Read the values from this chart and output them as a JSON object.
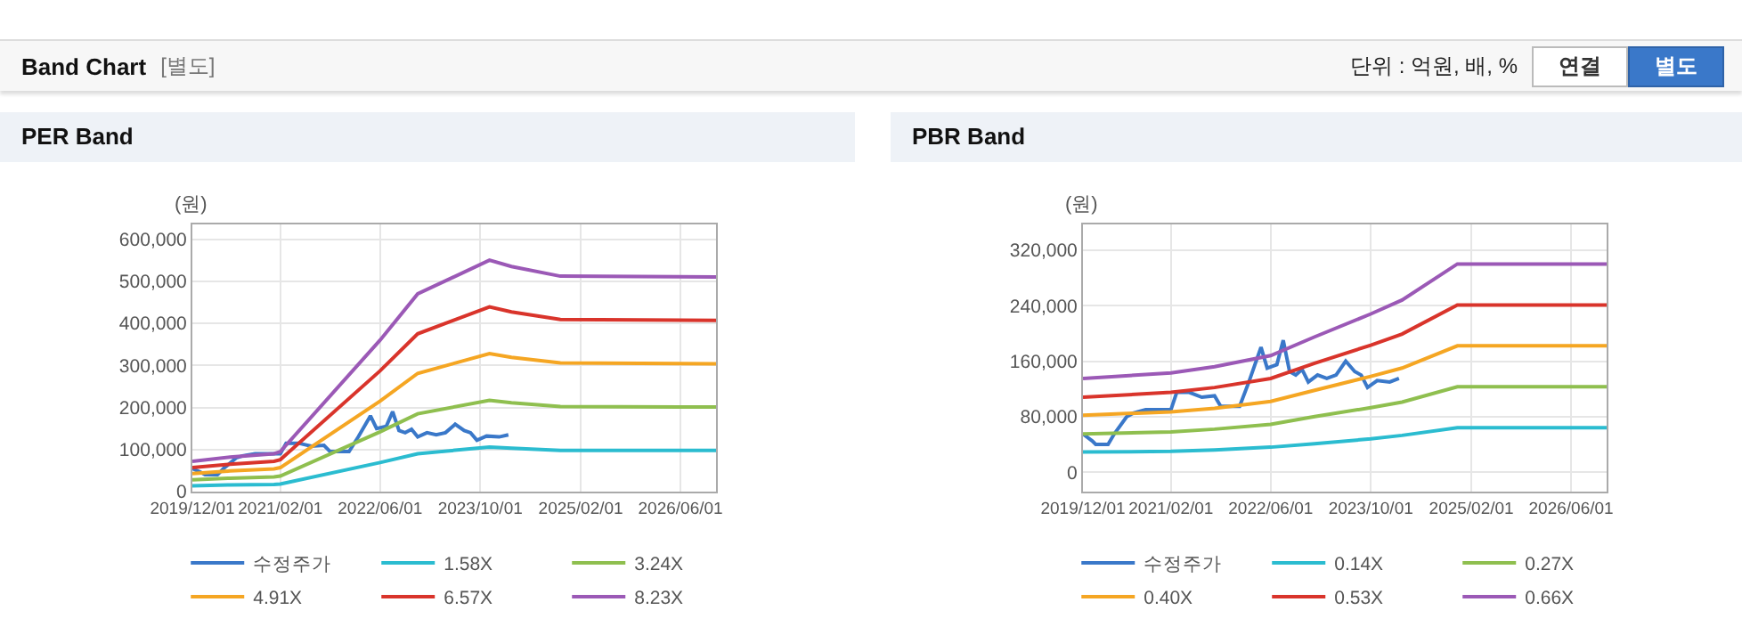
{
  "chart_data": [
    {
      "type": "other",
      "title": "Band Chart",
      "annotations": [
        "[별도]",
        "단위 : 억원, 배, %",
        "연결",
        "별도"
      ]
    },
    {
      "type": "line",
      "title": "PER Band",
      "ylabel": "(원)",
      "grid": true,
      "legend": "bottom",
      "xlim": [
        "2019-12-01",
        "2026-11-21"
      ],
      "xticks": [
        {
          "value": "2019-12-01",
          "label": "2019/12/01"
        },
        {
          "value": "2021-02-01",
          "label": "2021/02/01"
        },
        {
          "value": "2022-06-01",
          "label": "2022/06/01"
        },
        {
          "value": "2023-10-01",
          "label": "2023/10/01"
        },
        {
          "value": "2025-02-01",
          "label": "2025/02/01"
        },
        {
          "value": "2026-06-01",
          "label": "2026/06/01"
        }
      ],
      "ylim": [
        0,
        635000
      ],
      "yticks": [
        {
          "value": 0,
          "label": "0"
        },
        {
          "value": 100000,
          "label": "100,000"
        },
        {
          "value": 200000,
          "label": "200,000"
        },
        {
          "value": 300000,
          "label": "300,000"
        },
        {
          "value": 400000,
          "label": "400,000"
        },
        {
          "value": 500000,
          "label": "500,000"
        },
        {
          "value": 600000,
          "label": "600,000"
        }
      ],
      "x": [
        "2019-12-01",
        "2020-06-01",
        "2021-01-01",
        "2021-02-01",
        "2022-06-01",
        "2022-12-01",
        "2023-11-15",
        "2024-03-01",
        "2024-10-25",
        "2026-11-21"
      ],
      "series": [
        {
          "name": "수정주가",
          "color": "#3a78c9",
          "x": [
            "2019-12-01",
            "2020-01-15",
            "2020-02-01",
            "2020-04-01",
            "2020-05-01",
            "2020-07-01",
            "2020-08-01",
            "2020-10-01",
            "2021-02-01",
            "2021-03-01",
            "2021-05-01",
            "2021-07-01",
            "2021-09-01",
            "2021-10-01",
            "2022-01-01",
            "2022-02-15",
            "2022-04-15",
            "2022-05-15",
            "2022-07-01",
            "2022-08-01",
            "2022-09-01",
            "2022-10-01",
            "2022-11-01",
            "2022-12-01",
            "2023-01-15",
            "2023-03-01",
            "2023-04-15",
            "2023-06-01",
            "2023-07-15",
            "2023-08-15",
            "2023-09-15",
            "2023-11-01",
            "2024-01-01",
            "2024-02-15"
          ],
          "values": [
            55000,
            45000,
            40000,
            40000,
            55000,
            80000,
            85000,
            90000,
            90000,
            115000,
            115000,
            108000,
            110000,
            95000,
            95000,
            130000,
            180000,
            150000,
            155000,
            190000,
            145000,
            140000,
            148000,
            130000,
            140000,
            135000,
            140000,
            160000,
            145000,
            140000,
            122000,
            132000,
            130000,
            135000
          ]
        },
        {
          "name": "1.58X",
          "color": "#2bbcd0",
          "values": [
            14000,
            16000,
            17000,
            18000,
            69000,
            90000,
            106000,
            103000,
            98000,
            98000
          ]
        },
        {
          "name": "3.24X",
          "color": "#8fbf4f",
          "values": [
            28000,
            32000,
            35000,
            37000,
            142000,
            185000,
            217000,
            211000,
            202000,
            201000
          ]
        },
        {
          "name": "4.91X",
          "color": "#f5a623",
          "values": [
            43000,
            49000,
            54000,
            57000,
            215000,
            281000,
            328000,
            319000,
            306000,
            304000
          ]
        },
        {
          "name": "6.57X",
          "color": "#d9342b",
          "values": [
            57000,
            65000,
            72000,
            76000,
            287000,
            375000,
            439000,
            427000,
            409000,
            407000
          ]
        },
        {
          "name": "8.23X",
          "color": "#9b59b6",
          "values": [
            72000,
            82000,
            90000,
            95000,
            360000,
            470000,
            550000,
            535000,
            512000,
            510000
          ]
        }
      ]
    },
    {
      "type": "line",
      "title": "PBR Band",
      "ylabel": "(원)",
      "grid": true,
      "legend": "bottom",
      "xlim": [
        "2019-12-01",
        "2026-11-21"
      ],
      "xticks": [
        {
          "value": "2019-12-01",
          "label": "2019/12/01"
        },
        {
          "value": "2021-02-01",
          "label": "2021/02/01"
        },
        {
          "value": "2022-06-01",
          "label": "2022/06/01"
        },
        {
          "value": "2023-10-01",
          "label": "2023/10/01"
        },
        {
          "value": "2025-02-01",
          "label": "2025/02/01"
        },
        {
          "value": "2026-06-01",
          "label": "2026/06/01"
        }
      ],
      "ylim": [
        -28000,
        357000
      ],
      "yticks": [
        {
          "value": 0,
          "label": "0"
        },
        {
          "value": 80000,
          "label": "80,000"
        },
        {
          "value": 160000,
          "label": "160,000"
        },
        {
          "value": 240000,
          "label": "240,000"
        },
        {
          "value": 320000,
          "label": "320,000"
        }
      ],
      "x": [
        "2019-12-01",
        "2021-02-01",
        "2021-09-01",
        "2022-06-01",
        "2023-01-01",
        "2023-10-01",
        "2024-03-01",
        "2024-11-25",
        "2026-11-21"
      ],
      "series": [
        {
          "name": "수정주가",
          "color": "#3a78c9",
          "x": [
            "2019-12-01",
            "2020-01-15",
            "2020-02-01",
            "2020-04-01",
            "2020-05-01",
            "2020-07-01",
            "2020-08-01",
            "2020-10-01",
            "2021-02-01",
            "2021-03-01",
            "2021-05-01",
            "2021-07-01",
            "2021-09-01",
            "2021-10-01",
            "2022-01-01",
            "2022-02-15",
            "2022-04-15",
            "2022-05-15",
            "2022-07-01",
            "2022-08-01",
            "2022-09-01",
            "2022-10-01",
            "2022-11-01",
            "2022-12-01",
            "2023-01-15",
            "2023-03-01",
            "2023-04-15",
            "2023-06-01",
            "2023-07-15",
            "2023-08-15",
            "2023-09-15",
            "2023-11-01",
            "2024-01-01",
            "2024-02-15"
          ],
          "values": [
            55000,
            45000,
            40000,
            40000,
            55000,
            80000,
            85000,
            90000,
            90000,
            115000,
            115000,
            108000,
            110000,
            95000,
            95000,
            130000,
            180000,
            150000,
            155000,
            190000,
            145000,
            140000,
            148000,
            130000,
            140000,
            135000,
            140000,
            160000,
            145000,
            140000,
            122000,
            132000,
            130000,
            135000
          ]
        },
        {
          "name": "0.14X",
          "color": "#2bbcd0",
          "values": [
            29000,
            30000,
            32000,
            36000,
            41000,
            48000,
            53000,
            64000,
            64000
          ]
        },
        {
          "name": "0.27X",
          "color": "#8fbf4f",
          "values": [
            55000,
            58000,
            62000,
            69000,
            80000,
            93000,
            101000,
            123000,
            123000
          ]
        },
        {
          "name": "0.40X",
          "color": "#f5a623",
          "values": [
            82000,
            87000,
            92000,
            102000,
            118000,
            138000,
            150000,
            182000,
            182000
          ]
        },
        {
          "name": "0.53X",
          "color": "#d9342b",
          "values": [
            108000,
            115000,
            122000,
            135000,
            157000,
            183000,
            199000,
            241000,
            241000
          ]
        },
        {
          "name": "0.66X",
          "color": "#9b59b6",
          "values": [
            135000,
            143000,
            152000,
            168000,
            195000,
            228000,
            248000,
            300000,
            300000
          ]
        }
      ]
    }
  ]
}
